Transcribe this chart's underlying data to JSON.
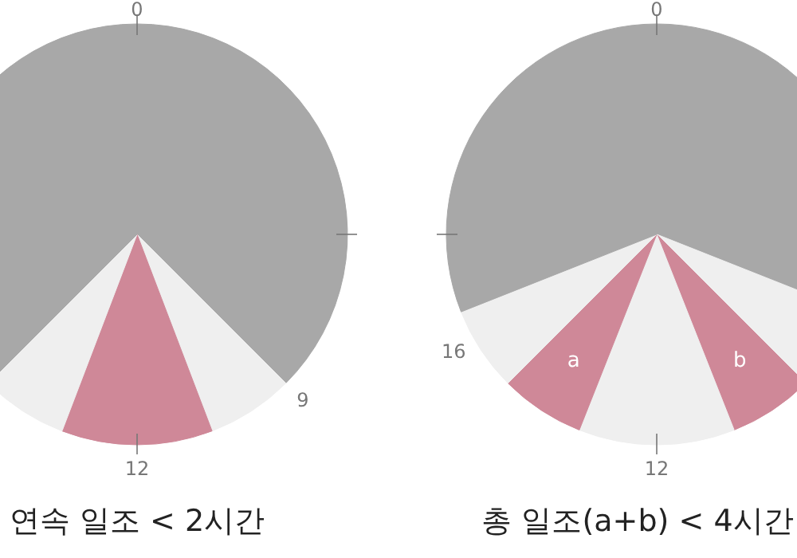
{
  "chart_data": [
    {
      "type": "pie",
      "title": "연속 일조 < 2시간",
      "categories": [
        null,
        null,
        null,
        null,
        null
      ],
      "values": [
        37.5,
        6.7,
        11.6,
        6.7,
        37.5
      ],
      "colors": [
        "#a8a8a8",
        "#efefef",
        "#cf8898",
        "#efefef",
        "#a8a8a8"
      ],
      "annotations": [
        "0",
        "9",
        "12"
      ]
    },
    {
      "type": "pie",
      "title": "총 일조(a+b) < 4시간",
      "categories": [
        null,
        null,
        "b",
        null,
        "a",
        null,
        null
      ],
      "values": [
        31,
        6.5,
        6.5,
        12,
        6.5,
        6.5,
        31
      ],
      "colors": [
        "#a8a8a8",
        "#efefef",
        "#cf8898",
        "#efefef",
        "#cf8898",
        "#efefef",
        "#a8a8a8"
      ],
      "annotations": [
        "0",
        "12",
        "16"
      ]
    }
  ]
}
